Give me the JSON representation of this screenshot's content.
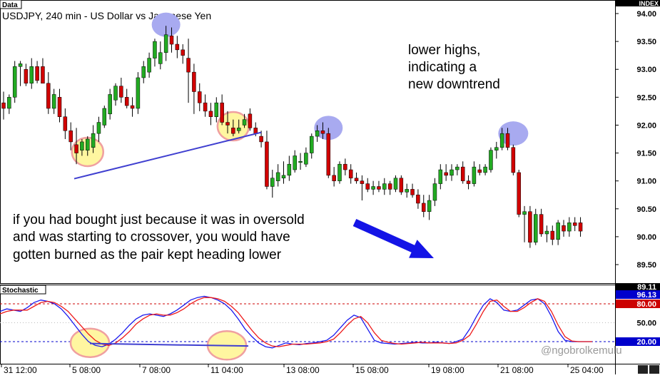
{
  "window": {
    "data_tab": "Data",
    "title": "USDJPY, 240 min - US Dollar vs Japanese Yen",
    "index_label": "INDEX",
    "stoch_tab": "Stochastic"
  },
  "annotations": {
    "lower_highs": [
      "lower highs,",
      "indicating a",
      "new downtrend"
    ],
    "warning": [
      "if you had bought just because it was in oversold",
      "and was starting to crossover, you would have",
      "gotten burned as the pair kept heading lower"
    ],
    "watermark": "@ngobrolkemulu"
  },
  "colors": {
    "bull": "#22aa22",
    "bear": "#d10000",
    "highlight_blue": "#a8aaf0",
    "highlight_yellow": "#fff6a0",
    "highlight_ring": "#f0a0a0",
    "trendline": "#3f3fd0",
    "arrow": "#1414e6",
    "stoch_k": "#1a1aee",
    "stoch_d": "#ee1a1a",
    "level_80": "#cc0000",
    "level_20": "#0000cc",
    "price_tag": "#000000"
  },
  "chart_data": [
    {
      "type": "candlestick",
      "title": "USDJPY, 240 min - US Dollar vs Japanese Yen",
      "ylim": [
        89.15,
        94.2
      ],
      "y_ticks": [
        "94.00",
        "93.50",
        "93.00",
        "92.50",
        "92.00",
        "91.50",
        "91.00",
        "90.50",
        "90.00",
        "89.50"
      ],
      "last_price": "89.11",
      "x_ticks": [
        "31 12:00",
        "5 08:00",
        "7 08:00",
        "11 04:00",
        "13 08:00",
        "15 08:00",
        "19 08:00",
        "21 08:00",
        "25 04:00"
      ],
      "candles": [
        {
          "o": 92.4,
          "h": 92.6,
          "l": 92.1,
          "c": 92.3
        },
        {
          "o": 92.3,
          "h": 92.55,
          "l": 92.2,
          "c": 92.5
        },
        {
          "o": 92.5,
          "h": 93.15,
          "l": 92.4,
          "c": 93.05
        },
        {
          "o": 93.05,
          "h": 93.15,
          "l": 92.7,
          "c": 93.1
        },
        {
          "o": 93.0,
          "h": 93.1,
          "l": 92.7,
          "c": 92.75
        },
        {
          "o": 92.75,
          "h": 93.2,
          "l": 92.65,
          "c": 93.05
        },
        {
          "o": 93.05,
          "h": 93.15,
          "l": 92.75,
          "c": 92.8
        },
        {
          "o": 93.05,
          "h": 93.2,
          "l": 92.75,
          "c": 92.75
        },
        {
          "o": 92.75,
          "h": 92.95,
          "l": 92.2,
          "c": 92.3
        },
        {
          "o": 92.3,
          "h": 92.65,
          "l": 92.2,
          "c": 92.55
        },
        {
          "o": 92.5,
          "h": 92.65,
          "l": 92.05,
          "c": 92.15
        },
        {
          "o": 92.15,
          "h": 92.3,
          "l": 91.75,
          "c": 91.9
        },
        {
          "o": 91.9,
          "h": 92.05,
          "l": 91.55,
          "c": 91.7
        },
        {
          "o": 91.65,
          "h": 91.95,
          "l": 91.3,
          "c": 91.5
        },
        {
          "o": 91.55,
          "h": 91.75,
          "l": 91.45,
          "c": 91.7
        },
        {
          "o": 91.55,
          "h": 91.8,
          "l": 91.45,
          "c": 91.75
        },
        {
          "o": 91.6,
          "h": 92.0,
          "l": 91.5,
          "c": 91.85
        },
        {
          "o": 91.85,
          "h": 92.15,
          "l": 91.7,
          "c": 92.05
        },
        {
          "o": 92.0,
          "h": 92.35,
          "l": 91.95,
          "c": 92.3
        },
        {
          "o": 92.2,
          "h": 92.65,
          "l": 92.1,
          "c": 92.55
        },
        {
          "o": 92.45,
          "h": 92.75,
          "l": 92.35,
          "c": 92.7
        },
        {
          "o": 92.7,
          "h": 92.85,
          "l": 92.4,
          "c": 92.5
        },
        {
          "o": 92.5,
          "h": 92.65,
          "l": 92.3,
          "c": 92.35
        },
        {
          "o": 92.35,
          "h": 92.5,
          "l": 92.15,
          "c": 92.3
        },
        {
          "o": 92.3,
          "h": 92.95,
          "l": 92.2,
          "c": 92.85
        },
        {
          "o": 92.85,
          "h": 93.15,
          "l": 92.75,
          "c": 93.05
        },
        {
          "o": 92.95,
          "h": 93.3,
          "l": 92.85,
          "c": 93.2
        },
        {
          "o": 93.2,
          "h": 93.55,
          "l": 93.05,
          "c": 93.5
        },
        {
          "o": 93.1,
          "h": 93.5,
          "l": 93.0,
          "c": 93.3
        },
        {
          "o": 93.3,
          "h": 93.78,
          "l": 93.15,
          "c": 93.62
        },
        {
          "o": 93.6,
          "h": 93.75,
          "l": 93.3,
          "c": 93.45
        },
        {
          "o": 93.45,
          "h": 93.6,
          "l": 93.2,
          "c": 93.35
        },
        {
          "o": 93.35,
          "h": 93.45,
          "l": 93.1,
          "c": 93.25
        },
        {
          "o": 93.2,
          "h": 93.55,
          "l": 92.4,
          "c": 92.95
        },
        {
          "o": 92.95,
          "h": 93.1,
          "l": 92.2,
          "c": 92.6
        },
        {
          "o": 92.6,
          "h": 92.75,
          "l": 92.25,
          "c": 92.4
        },
        {
          "o": 92.4,
          "h": 92.55,
          "l": 92.15,
          "c": 92.25
        },
        {
          "o": 92.25,
          "h": 92.4,
          "l": 92.0,
          "c": 92.15
        },
        {
          "o": 92.15,
          "h": 92.5,
          "l": 92.05,
          "c": 92.4
        },
        {
          "o": 92.4,
          "h": 92.55,
          "l": 92.0,
          "c": 92.05
        },
        {
          "o": 92.05,
          "h": 92.25,
          "l": 91.85,
          "c": 92.0
        },
        {
          "o": 91.95,
          "h": 92.1,
          "l": 91.8,
          "c": 91.85
        },
        {
          "o": 91.9,
          "h": 92.1,
          "l": 91.85,
          "c": 91.95
        },
        {
          "o": 92.0,
          "h": 92.2,
          "l": 91.95,
          "c": 92.1
        },
        {
          "o": 92.2,
          "h": 92.3,
          "l": 91.9,
          "c": 91.95
        },
        {
          "o": 91.95,
          "h": 92.05,
          "l": 91.8,
          "c": 91.85
        },
        {
          "o": 91.8,
          "h": 91.9,
          "l": 91.6,
          "c": 91.7
        },
        {
          "o": 91.7,
          "h": 91.9,
          "l": 90.85,
          "c": 90.9
        },
        {
          "o": 90.9,
          "h": 91.2,
          "l": 90.7,
          "c": 91.05
        },
        {
          "o": 91.0,
          "h": 91.3,
          "l": 90.9,
          "c": 91.15
        },
        {
          "o": 91.05,
          "h": 91.35,
          "l": 90.95,
          "c": 91.1
        },
        {
          "o": 91.1,
          "h": 91.45,
          "l": 91.0,
          "c": 91.3
        },
        {
          "o": 91.2,
          "h": 91.55,
          "l": 91.15,
          "c": 91.45
        },
        {
          "o": 91.35,
          "h": 91.5,
          "l": 91.2,
          "c": 91.35
        },
        {
          "o": 91.3,
          "h": 91.6,
          "l": 91.25,
          "c": 91.5
        },
        {
          "o": 91.5,
          "h": 91.85,
          "l": 91.4,
          "c": 91.8
        },
        {
          "o": 91.8,
          "h": 92.0,
          "l": 91.7,
          "c": 91.9
        },
        {
          "o": 91.9,
          "h": 92.05,
          "l": 91.75,
          "c": 91.85
        },
        {
          "o": 91.85,
          "h": 91.95,
          "l": 91.05,
          "c": 91.1
        },
        {
          "o": 91.1,
          "h": 91.25,
          "l": 90.9,
          "c": 91.0
        },
        {
          "o": 91.0,
          "h": 91.35,
          "l": 90.95,
          "c": 91.3
        },
        {
          "o": 91.3,
          "h": 91.4,
          "l": 91.1,
          "c": 91.2
        },
        {
          "o": 91.2,
          "h": 91.3,
          "l": 90.95,
          "c": 91.05
        },
        {
          "o": 91.05,
          "h": 91.15,
          "l": 90.95,
          "c": 91.0
        },
        {
          "o": 91.0,
          "h": 91.1,
          "l": 90.65,
          "c": 90.95
        },
        {
          "o": 90.95,
          "h": 91.05,
          "l": 90.8,
          "c": 90.85
        },
        {
          "o": 90.85,
          "h": 91.0,
          "l": 90.75,
          "c": 90.9
        },
        {
          "o": 90.9,
          "h": 91.0,
          "l": 90.8,
          "c": 90.85
        },
        {
          "o": 90.85,
          "h": 91.05,
          "l": 90.75,
          "c": 90.95
        },
        {
          "o": 90.95,
          "h": 91.0,
          "l": 90.75,
          "c": 90.85
        },
        {
          "o": 90.85,
          "h": 91.1,
          "l": 90.8,
          "c": 91.05
        },
        {
          "o": 91.05,
          "h": 91.1,
          "l": 90.75,
          "c": 90.8
        },
        {
          "o": 90.8,
          "h": 90.95,
          "l": 90.7,
          "c": 90.85
        },
        {
          "o": 90.85,
          "h": 90.95,
          "l": 90.7,
          "c": 90.75
        },
        {
          "o": 90.75,
          "h": 90.85,
          "l": 90.5,
          "c": 90.6
        },
        {
          "o": 90.6,
          "h": 90.75,
          "l": 90.35,
          "c": 90.45
        },
        {
          "o": 90.45,
          "h": 90.75,
          "l": 90.3,
          "c": 90.65
        },
        {
          "o": 90.65,
          "h": 91.05,
          "l": 90.55,
          "c": 90.95
        },
        {
          "o": 90.95,
          "h": 91.3,
          "l": 90.85,
          "c": 91.2
        },
        {
          "o": 91.15,
          "h": 91.3,
          "l": 91.0,
          "c": 91.1
        },
        {
          "o": 91.1,
          "h": 91.3,
          "l": 91.0,
          "c": 91.2
        },
        {
          "o": 91.2,
          "h": 91.3,
          "l": 91.1,
          "c": 91.25
        },
        {
          "o": 91.25,
          "h": 91.35,
          "l": 90.95,
          "c": 91.0
        },
        {
          "o": 91.0,
          "h": 91.1,
          "l": 90.85,
          "c": 90.95
        },
        {
          "o": 90.95,
          "h": 91.35,
          "l": 90.9,
          "c": 91.25
        },
        {
          "o": 91.2,
          "h": 91.3,
          "l": 91.1,
          "c": 91.15
        },
        {
          "o": 91.15,
          "h": 91.3,
          "l": 91.1,
          "c": 91.25
        },
        {
          "o": 91.2,
          "h": 91.6,
          "l": 91.15,
          "c": 91.55
        },
        {
          "o": 91.55,
          "h": 91.7,
          "l": 91.4,
          "c": 91.6
        },
        {
          "o": 91.6,
          "h": 91.95,
          "l": 91.55,
          "c": 91.85
        },
        {
          "o": 91.85,
          "h": 91.95,
          "l": 91.55,
          "c": 91.6
        },
        {
          "o": 91.6,
          "h": 91.65,
          "l": 91.1,
          "c": 91.15
        },
        {
          "o": 91.15,
          "h": 91.2,
          "l": 90.35,
          "c": 90.4
        },
        {
          "o": 90.4,
          "h": 90.55,
          "l": 89.9,
          "c": 90.45
        },
        {
          "o": 90.45,
          "h": 90.55,
          "l": 89.8,
          "c": 89.9
        },
        {
          "o": 89.9,
          "h": 90.5,
          "l": 89.85,
          "c": 90.4
        },
        {
          "o": 90.4,
          "h": 90.5,
          "l": 90.0,
          "c": 90.05
        },
        {
          "o": 90.05,
          "h": 90.2,
          "l": 89.9,
          "c": 90.1
        },
        {
          "o": 90.1,
          "h": 90.2,
          "l": 89.85,
          "c": 89.95
        },
        {
          "o": 89.95,
          "h": 90.3,
          "l": 89.85,
          "c": 90.25
        },
        {
          "o": 90.2,
          "h": 90.3,
          "l": 90.0,
          "c": 90.1
        },
        {
          "o": 90.1,
          "h": 90.35,
          "l": 90.0,
          "c": 90.25
        },
        {
          "o": 90.25,
          "h": 90.35,
          "l": 90.1,
          "c": 90.2
        },
        {
          "o": 90.25,
          "h": 90.35,
          "l": 90.0,
          "c": 90.1
        }
      ]
    },
    {
      "type": "line",
      "title": "Stochastic",
      "ylim": [
        0,
        100
      ],
      "y_ticks": [
        "50.00"
      ],
      "levels": [
        80,
        20
      ],
      "value_tags": [
        "89.11",
        "96.13",
        "80.00",
        "20.00"
      ],
      "series": [
        {
          "values": [
            68,
            72,
            70,
            68,
            74,
            82,
            86,
            84,
            80,
            72,
            60,
            46,
            32,
            20,
            14,
            12,
            16,
            24,
            34,
            46,
            56,
            62,
            64,
            62,
            60,
            64,
            70,
            78,
            86,
            90,
            92,
            90,
            86,
            80,
            70,
            56,
            40,
            28,
            18,
            12,
            10,
            14,
            18,
            16,
            15,
            17,
            18,
            20,
            22,
            30,
            42,
            54,
            62,
            58,
            40,
            22,
            18,
            17,
            16,
            17,
            18,
            19,
            18,
            18,
            19,
            18,
            17,
            20,
            24,
            40,
            60,
            78,
            88,
            82,
            70,
            68,
            70,
            78,
            86,
            88,
            80,
            60,
            36,
            22,
            20,
            20,
            20,
            20
          ]
        },
        {
          "values": [
            64,
            68,
            70,
            70,
            70,
            76,
            82,
            84,
            82,
            76,
            68,
            56,
            44,
            32,
            22,
            16,
            14,
            18,
            26,
            36,
            48,
            56,
            62,
            64,
            62,
            62,
            66,
            72,
            80,
            86,
            90,
            90,
            88,
            84,
            76,
            66,
            52,
            38,
            26,
            18,
            13,
            12,
            14,
            16,
            16,
            16,
            17,
            18,
            20,
            24,
            34,
            46,
            56,
            60,
            50,
            34,
            22,
            19,
            17,
            16,
            17,
            18,
            19,
            18,
            18,
            18,
            17,
            18,
            22,
            30,
            48,
            68,
            84,
            86,
            76,
            68,
            68,
            74,
            82,
            88,
            84,
            68,
            46,
            28,
            21,
            20,
            20,
            20
          ]
        }
      ]
    }
  ]
}
